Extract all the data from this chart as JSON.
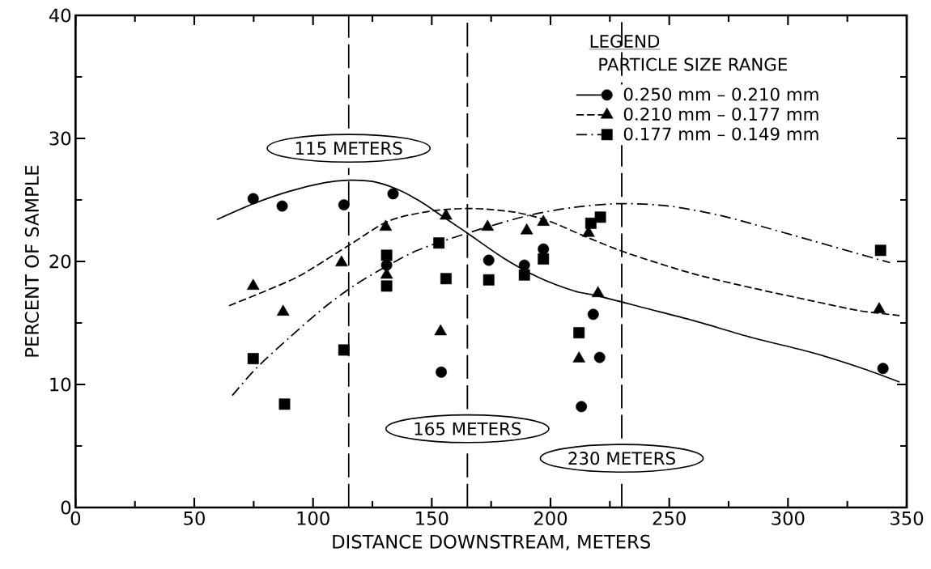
{
  "chart_data": {
    "type": "line",
    "xlabel": "DISTANCE DOWNSTREAM, METERS",
    "ylabel": "PERCENT OF SAMPLE",
    "legend_title": "LEGEND",
    "annotations": [
      "PARTICLE SIZE RANGE"
    ],
    "xlim": [
      0,
      350
    ],
    "ylim": [
      0,
      40
    ],
    "xticks": [
      0,
      50,
      100,
      150,
      200,
      250,
      300,
      350
    ],
    "yticks": [
      0,
      10,
      20,
      30,
      40
    ],
    "grid": false,
    "legend": "top right",
    "ref_lines": [
      {
        "axis": "x",
        "value": 115,
        "label": "115 METERS",
        "line_style": "dashed",
        "color": "#000000"
      },
      {
        "axis": "x",
        "value": 165,
        "label": "165 METERS",
        "line_style": "dashed",
        "color": "#000000"
      },
      {
        "axis": "x",
        "value": 230,
        "label": "230 METERS",
        "line_style": "dashed",
        "color": "#000000"
      }
    ],
    "series": [
      {
        "type": "scatter",
        "name": "0.250 mm – 0.210 mm",
        "color": "#000000",
        "marker": "circle",
        "x": [
          74.8,
          87,
          113,
          133.7,
          131,
          154,
          174,
          189,
          197,
          218,
          220.7,
          213,
          340
        ],
        "values": [
          25.1,
          24.5,
          24.6,
          25.5,
          19.7,
          11.0,
          20.1,
          19.7,
          21.0,
          15.7,
          12.2,
          8.2,
          11.3
        ]
      },
      {
        "type": "scatter",
        "name": "0.210 mm – 0.177 mm",
        "color": "#000000",
        "marker": "triangle",
        "x": [
          74.8,
          87.4,
          112,
          130.6,
          131,
          153.7,
          156,
          173.5,
          190,
          197,
          216,
          212,
          220,
          338.4
        ],
        "values": [
          18.0,
          15.9,
          19.9,
          22.8,
          18.9,
          14.3,
          23.7,
          22.8,
          22.5,
          23.2,
          22.3,
          12.1,
          17.4,
          16.1
        ]
      },
      {
        "type": "scatter",
        "name": "0.177 mm – 0.149 mm",
        "color": "#000000",
        "marker": "square",
        "x": [
          74.8,
          88,
          113,
          131,
          131,
          153,
          156,
          174,
          189,
          197,
          217,
          221,
          212,
          339
        ],
        "values": [
          12.1,
          8.4,
          12.8,
          20.5,
          18.0,
          21.5,
          18.6,
          18.5,
          18.9,
          20.2,
          23.1,
          23.6,
          14.2,
          20.9
        ]
      },
      {
        "color": "#000000",
        "line_style": "solid",
        "marker": "none",
        "x": [
          59.5,
          75,
          90,
          105,
          115,
          125,
          135,
          145,
          155,
          165,
          180,
          195,
          210,
          220,
          240,
          260,
          285,
          310,
          330,
          347
        ],
        "values": [
          23.4,
          24.7,
          25.7,
          26.4,
          26.6,
          26.5,
          25.9,
          24.9,
          23.6,
          22.3,
          20.3,
          18.7,
          17.6,
          17.2,
          16.2,
          15.2,
          13.8,
          12.6,
          11.4,
          10.2
        ]
      },
      {
        "color": "#000000",
        "line_style": "dashed",
        "marker": "none",
        "x": [
          64.6,
          80,
          95,
          115,
          132,
          150,
          167,
          185,
          199,
          215,
          232,
          260,
          286,
          310,
          330,
          347
        ],
        "values": [
          16.4,
          17.6,
          18.9,
          21.3,
          23.3,
          24.1,
          24.3,
          24.0,
          23.3,
          22.0,
          20.7,
          19.0,
          17.8,
          16.8,
          16.0,
          15.6
        ]
      },
      {
        "color": "#000000",
        "line_style": "dashdot",
        "marker": "none",
        "x": [
          66,
          76,
          90,
          105,
          117,
          130,
          144,
          165,
          190,
          210,
          230,
          250,
          270,
          286,
          310,
          330,
          343
        ],
        "values": [
          9.1,
          11.3,
          13.8,
          16.3,
          18.0,
          19.5,
          20.9,
          22.3,
          23.7,
          24.4,
          24.7,
          24.5,
          23.8,
          23.0,
          21.7,
          20.6,
          19.9
        ]
      }
    ]
  }
}
